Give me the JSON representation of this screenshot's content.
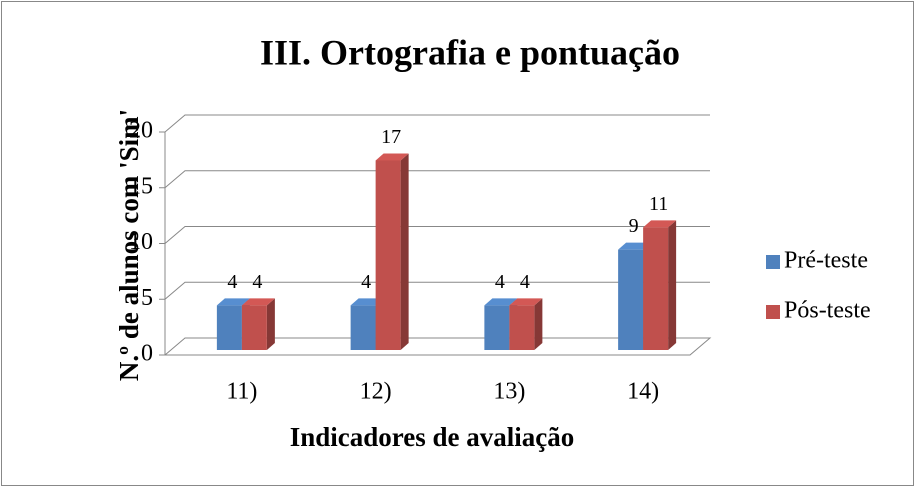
{
  "chart_data": {
    "type": "bar3d",
    "title": "III. Ortografia e pontuação",
    "x_label": "Indicadores de avaliação",
    "y_label": "N.º de alunos com 'Sim'",
    "categories": [
      "11)",
      "12)",
      "13)",
      "14)"
    ],
    "series": [
      {
        "name": "Pré-teste",
        "color": "#4f81bd",
        "values": [
          4,
          4,
          4,
          9
        ]
      },
      {
        "name": "Pós-teste",
        "color": "#c0504d",
        "values": [
          4,
          17,
          4,
          11
        ]
      }
    ],
    "ylim": [
      0,
      20
    ],
    "yticks": [
      0,
      5,
      10,
      15,
      20
    ],
    "grid": true,
    "legend": "right"
  }
}
